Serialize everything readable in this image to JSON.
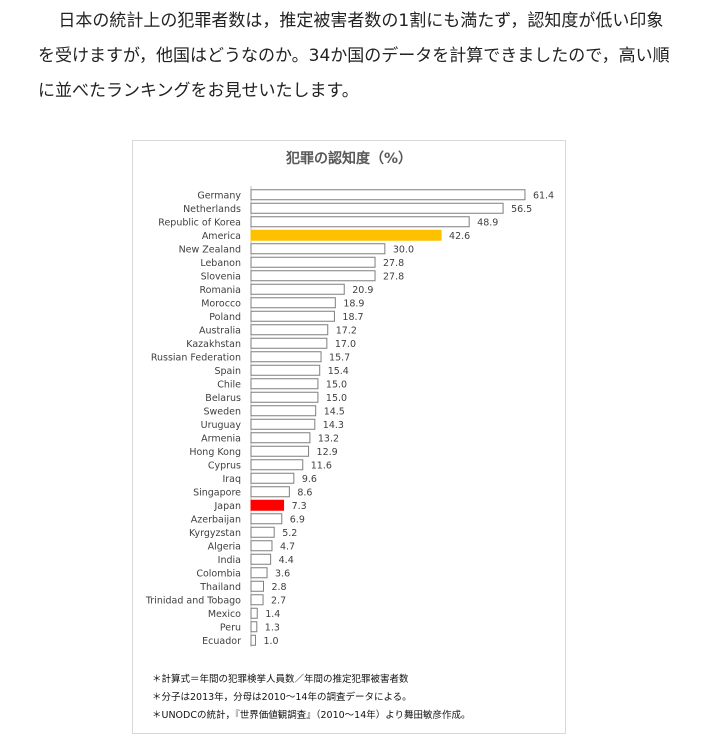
{
  "article": {
    "paragraph": "日本の統計上の犯罪者数は，推定被害者数の1割にも満たず，認知度が低い印象を受けますが，他国はどうなのか。34か国のデータを計算できましたので，高い順に並べたランキングをお見せいたします。"
  },
  "chart_data": {
    "type": "bar",
    "orientation": "horizontal",
    "title": "犯罪の認知度（%）",
    "xlabel": "",
    "ylabel": "",
    "xlim": [
      0,
      65
    ],
    "grid": false,
    "legend": "none",
    "categories": [
      "Germany",
      "Netherlands",
      "Republic of Korea",
      "America",
      "New Zealand",
      "Lebanon",
      "Slovenia",
      "Romania",
      "Morocco",
      "Poland",
      "Australia",
      "Kazakhstan",
      "Russian Federation",
      "Spain",
      "Chile",
      "Belarus",
      "Sweden",
      "Uruguay",
      "Armenia",
      "Hong Kong",
      "Cyprus",
      "Iraq",
      "Singapore",
      "Japan",
      "Azerbaijan",
      "Kyrgyzstan",
      "Algeria",
      "India",
      "Colombia",
      "Thailand",
      "Trinidad and Tobago",
      "Mexico",
      "Peru",
      "Ecuador"
    ],
    "values": [
      61.4,
      56.5,
      48.9,
      42.6,
      30.0,
      27.8,
      27.8,
      20.9,
      18.9,
      18.7,
      17.2,
      17.0,
      15.7,
      15.4,
      15.0,
      15.0,
      14.5,
      14.3,
      13.2,
      12.9,
      11.6,
      9.6,
      8.6,
      7.3,
      6.9,
      5.2,
      4.7,
      4.4,
      3.6,
      2.8,
      2.7,
      1.4,
      1.3,
      1.0
    ],
    "value_labels": [
      "61.4",
      "56.5",
      "48.9",
      "42.6",
      "30.0",
      "27.8",
      "27.8",
      "20.9",
      "18.9",
      "18.7",
      "17.2",
      "17.0",
      "15.7",
      "15.4",
      "15.0",
      "15.0",
      "14.5",
      "14.3",
      "13.2",
      "12.9",
      "11.6",
      "9.6",
      "8.6",
      "7.3",
      "6.9",
      "5.2",
      "4.7",
      "4.4",
      "3.6",
      "2.8",
      "2.7",
      "1.4",
      "1.3",
      "1.0"
    ],
    "highlights": {
      "America": "#ffc000",
      "Japan": "#ff0000"
    },
    "default_fill": "#ffffff",
    "bar_stroke": "#7f7f7f"
  },
  "notes": [
    "＊計算式＝年間の犯罪検挙人員数／年間の推定犯罪被害者数",
    "＊分子は2013年，分母は2010～14年の調査データによる。",
    "＊UNODCの統計，『世界価値観調査』（2010～14年）より舞田敏彦作成。"
  ]
}
